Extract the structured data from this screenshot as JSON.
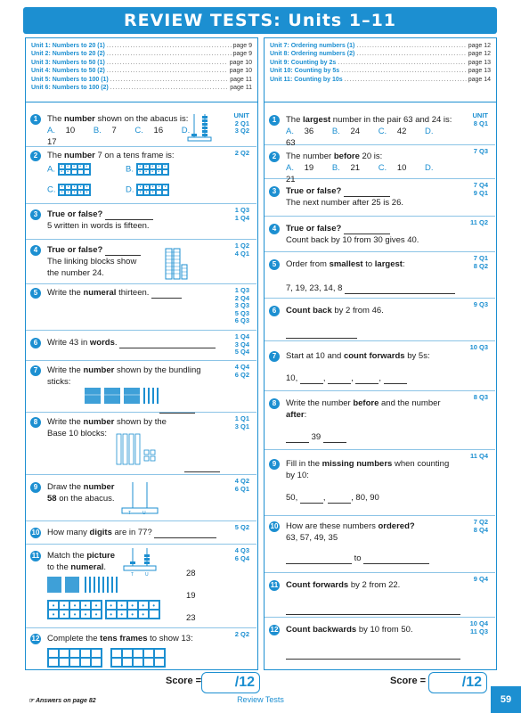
{
  "title": "REVIEW TESTS: Units 1–11",
  "contents_left": [
    {
      "unit": "Unit 1:",
      "topic": "Numbers to 20 (1)",
      "page": "page 9"
    },
    {
      "unit": "Unit 2:",
      "topic": "Numbers to 20 (2)",
      "page": "page 9"
    },
    {
      "unit": "Unit 3:",
      "topic": "Numbers to 50 (1)",
      "page": "page 10"
    },
    {
      "unit": "Unit 4:",
      "topic": "Numbers to 50 (2)",
      "page": "page 10"
    },
    {
      "unit": "Unit 5:",
      "topic": "Numbers to 100 (1)",
      "page": "page 11"
    },
    {
      "unit": "Unit 6:",
      "topic": "Numbers to 100 (2)",
      "page": "page 11"
    }
  ],
  "contents_right": [
    {
      "unit": "Unit 7:",
      "topic": "Ordering numbers (1)",
      "page": "page 12"
    },
    {
      "unit": "Unit 8:",
      "topic": "Ordering numbers (2)",
      "page": "page 12"
    },
    {
      "unit": "Unit 9:",
      "topic": "Counting by 2s",
      "page": "page 13"
    },
    {
      "unit": "Unit 10:",
      "topic": "Counting by 5s",
      "page": "page 13"
    },
    {
      "unit": "Unit 11:",
      "topic": "Counting by 10s",
      "page": "page 14"
    }
  ],
  "left": {
    "q1": {
      "n": "1",
      "pre": "The ",
      "b": "number",
      "post": " shown on the abacus is:",
      "opts": [
        [
          "A.",
          "10"
        ],
        [
          "B.",
          "7"
        ],
        [
          "C.",
          "16"
        ],
        [
          "D.",
          "17"
        ]
      ],
      "ref": [
        "UNIT",
        "2 Q1",
        "3 Q2"
      ]
    },
    "q2": {
      "n": "2",
      "pre": "The ",
      "b": "number",
      "post": " 7 on a tens frame is:",
      "labels": [
        "A.",
        "B.",
        "C.",
        "D."
      ],
      "ref": [
        "2 Q2"
      ]
    },
    "q3": {
      "n": "3",
      "b": "True or false?",
      "line2": "5 written in words is fifteen.",
      "ref": [
        "1 Q3",
        "1 Q4"
      ]
    },
    "q4": {
      "n": "4",
      "b": "True or false?",
      "line2": "The linking blocks show",
      "line3": "the number 24.",
      "ref": [
        "1 Q2",
        "4 Q1"
      ]
    },
    "q5": {
      "n": "5",
      "pre": "Write the ",
      "b": "numeral",
      "post": " thirteen.",
      "ref": [
        "1 Q3",
        "2 Q4",
        "3 Q3",
        "5 Q3",
        "6 Q3"
      ]
    },
    "q6": {
      "n": "6",
      "pre": "Write 43 in ",
      "b": "words",
      "post": ".",
      "ref": [
        "1 Q4",
        "3 Q4",
        "5 Q4"
      ]
    },
    "q7": {
      "n": "7",
      "pre": "Write the ",
      "b": "number",
      "post": " shown by the bundling",
      "line2": "sticks:",
      "ref": [
        "4 Q4",
        "6 Q2"
      ]
    },
    "q8": {
      "n": "8",
      "pre": "Write the ",
      "b": "number",
      "post": " shown by the",
      "line2": "Base 10 blocks:",
      "ref": [
        "1 Q1",
        "3 Q1"
      ]
    },
    "q9": {
      "n": "9",
      "pre": "Draw the ",
      "b": "number",
      "line2b": "58",
      "line2": " on the abacus.",
      "ref": [
        "4 Q2",
        "6 Q1"
      ],
      "abacus_labels": [
        "T",
        "U"
      ]
    },
    "q10": {
      "n": "10",
      "pre": "How many ",
      "b": "digits",
      "post": " are in 77?",
      "ref": [
        "5 Q2"
      ]
    },
    "q11": {
      "n": "11",
      "pre": "Match the ",
      "b": "picture",
      "line2pre": "to the ",
      "line2b": "numeral",
      "line2post": ".",
      "choices": [
        "28",
        "19",
        "23"
      ],
      "ref": [
        "4 Q3",
        "6 Q4"
      ],
      "abacus_labels": [
        "T",
        "U"
      ]
    },
    "q12": {
      "n": "12",
      "pre": "Complete the ",
      "b": "tens frames",
      "post": " to show 13:",
      "ref": [
        "2 Q2"
      ]
    }
  },
  "right": {
    "q1": {
      "n": "1",
      "pre": "The ",
      "b": "largest",
      "post": " number in the pair 63 and 24 is:",
      "opts": [
        [
          "A.",
          "36"
        ],
        [
          "B.",
          "24"
        ],
        [
          "C.",
          "42"
        ],
        [
          "D.",
          "63"
        ]
      ],
      "ref": [
        "UNIT",
        "8 Q1"
      ]
    },
    "q2": {
      "n": "2",
      "pre": "The number ",
      "b": "before",
      "post": " 20 is:",
      "opts": [
        [
          "A.",
          "19"
        ],
        [
          "B.",
          "21"
        ],
        [
          "C.",
          "10"
        ],
        [
          "D.",
          "21"
        ]
      ],
      "ref": [
        "7 Q3"
      ]
    },
    "q3": {
      "n": "3",
      "b": "True or false?",
      "line2": "The next number after 25 is 26.",
      "ref": [
        "7 Q4",
        "9 Q1"
      ]
    },
    "q4": {
      "n": "4",
      "b": "True or false?",
      "line2": "Count back by 10 from 30 gives 40.",
      "ref": [
        "11 Q2"
      ]
    },
    "q5": {
      "n": "5",
      "pre": "Order from ",
      "b": "smallest",
      "mid": " to ",
      "b2": "largest",
      "post": ":",
      "line2": "7, 19, 23, 14, 8",
      "ref": [
        "7 Q1",
        "8 Q2"
      ]
    },
    "q6": {
      "n": "6",
      "b": "Count back",
      "post": " by 2 from 46.",
      "ref": [
        "9 Q3"
      ]
    },
    "q7": {
      "n": "7",
      "pre": "Start at 10 and ",
      "b": "count forwards",
      "post": " by 5s:",
      "line2": "10,",
      "ref": [
        "10 Q3"
      ]
    },
    "q8": {
      "n": "8",
      "pre": "Write the number ",
      "b": "before",
      "mid": " and the number",
      "line2b": "after",
      "line2": ":",
      "line3": "39",
      "ref": [
        "8 Q3"
      ]
    },
    "q9": {
      "n": "9",
      "pre": "Fill in the ",
      "b": "missing numbers",
      "post": " when counting",
      "line2": "by 10:",
      "line3a": "50,",
      "line3b": "80, 90",
      "ref": [
        "11 Q4"
      ]
    },
    "q10": {
      "n": "10",
      "pre": "How are these numbers ",
      "b": "ordered?",
      "line2": "63, 57, 49, 35",
      "line3": "to",
      "ref": [
        "7 Q2",
        "8 Q4"
      ]
    },
    "q11": {
      "n": "11",
      "b": "Count forwards",
      "post": " by 2 from 22.",
      "ref": [
        "9 Q4"
      ]
    },
    "q12": {
      "n": "12",
      "b": "Count backwards",
      "post": " by 10 from 50.",
      "ref": [
        "10 Q4",
        "11 Q3"
      ]
    }
  },
  "score_label": "Score =",
  "score_total": "/12",
  "footer_note": "Answers on page 82",
  "footer_title": "Review Tests",
  "page_number": "59",
  "colors": {
    "accent": "#1c8fd1"
  }
}
